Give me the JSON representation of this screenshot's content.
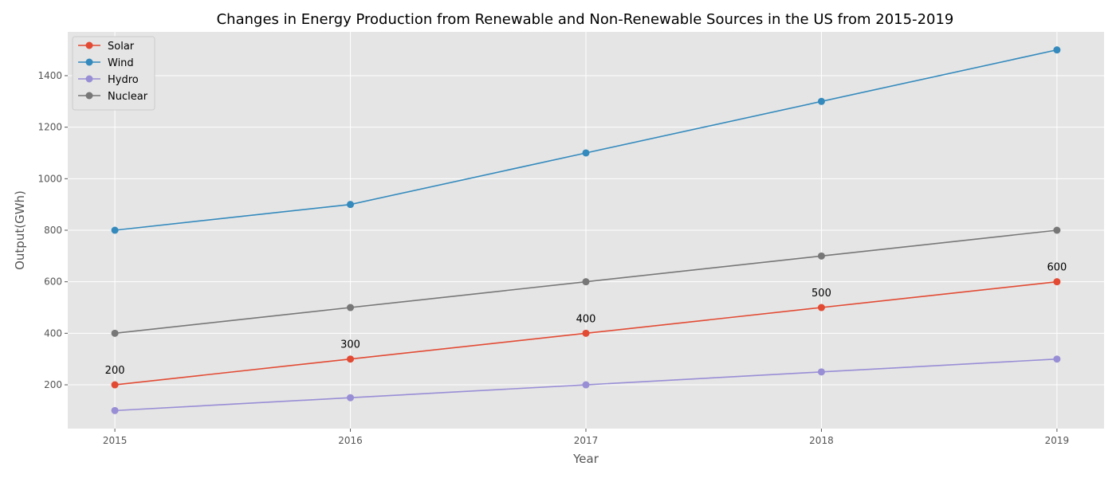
{
  "chart_data": {
    "type": "line",
    "title": "Changes in Energy Production from Renewable and Non-Renewable Sources in the US from 2015-2019",
    "xlabel": "Year",
    "ylabel": "Output(GWh)",
    "x": [
      2015,
      2016,
      2017,
      2018,
      2019
    ],
    "x_tick_labels": [
      "2015",
      "2016",
      "2017",
      "2018",
      "2019"
    ],
    "xlim": [
      2014.8,
      2019.2
    ],
    "ylim": [
      30,
      1570
    ],
    "y_ticks": [
      200,
      400,
      600,
      800,
      1000,
      1200,
      1400
    ],
    "y_tick_labels": [
      "200",
      "400",
      "600",
      "800",
      "1000",
      "1200",
      "1400"
    ],
    "grid": true,
    "legend_position": "top-left",
    "series": [
      {
        "name": "Solar",
        "color": "#E24A33",
        "values": [
          200,
          300,
          400,
          500,
          600
        ],
        "data_labels": [
          "200",
          "300",
          "400",
          "500",
          "600"
        ]
      },
      {
        "name": "Wind",
        "color": "#348ABD",
        "values": [
          800,
          900,
          1100,
          1300,
          1500
        ]
      },
      {
        "name": "Hydro",
        "color": "#988ED5",
        "values": [
          100,
          150,
          200,
          250,
          300
        ]
      },
      {
        "name": "Nuclear",
        "color": "#777777",
        "values": [
          400,
          500,
          600,
          700,
          800
        ]
      }
    ]
  }
}
